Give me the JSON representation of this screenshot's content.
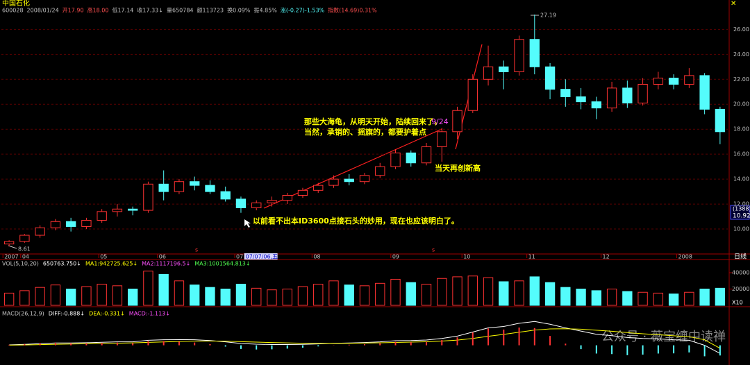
{
  "header": {
    "name": "中国石化",
    "fields": [
      {
        "text": "600028",
        "color": "#c0c0c0"
      },
      {
        "text": "2008/01/24",
        "color": "#c0c0c0"
      },
      {
        "text": "开17.90",
        "color": "#ff5050"
      },
      {
        "text": "高18.00",
        "color": "#ff5050"
      },
      {
        "text": "低17.14",
        "color": "#c0c0c0"
      },
      {
        "text": "收17.33↓",
        "color": "#c0c0c0"
      },
      {
        "text": "量650784",
        "color": "#c0c0c0"
      },
      {
        "text": "额113723",
        "color": "#c0c0c0"
      },
      {
        "text": "换0.09%",
        "color": "#c0c0c0"
      },
      {
        "text": "振4.85%",
        "color": "#c0c0c0"
      },
      {
        "text": "涨(-0.27)-1.53%",
        "color": "#54fcfc"
      },
      {
        "text": "指数(14.69)0.31%",
        "color": "#ff5050"
      }
    ]
  },
  "side_labels": [
    "(1388)",
    "10.92"
  ],
  "period_label": "日线",
  "watermark": "公众号 · 薇宝缠中读禅",
  "chart_data": [
    {
      "type": "candlestick",
      "title": "中国石化",
      "up_color": "#ff3232",
      "down_color": "#54fcfc",
      "grid": true,
      "ylim": [
        8.0,
        27.8
      ],
      "yticks": [
        {
          "value": 10,
          "label": "10.00"
        },
        {
          "value": 12,
          "label": "12.00"
        },
        {
          "value": 14,
          "label": "14.00"
        },
        {
          "value": 16,
          "label": "16.00"
        },
        {
          "value": 18,
          "label": "18.00"
        },
        {
          "value": 20,
          "label": "20.00"
        },
        {
          "value": 22,
          "label": "22.00"
        },
        {
          "value": 24,
          "label": "24.00"
        },
        {
          "value": 26,
          "label": "26.00"
        }
      ],
      "xlim": [
        -0.5,
        46.5
      ],
      "xticks": [
        {
          "value": -0.4,
          "label": "2007"
        },
        {
          "value": 0.75,
          "label": "04"
        },
        {
          "value": 5.8,
          "label": "05"
        },
        {
          "value": 9.6,
          "label": "06"
        },
        {
          "value": 14.6,
          "label": "07"
        },
        {
          "value": 19.6,
          "label": "08"
        },
        {
          "value": 24.7,
          "label": "09"
        },
        {
          "value": 29.3,
          "label": "10"
        },
        {
          "value": 33.5,
          "label": "11"
        },
        {
          "value": 38.3,
          "label": "12"
        },
        {
          "value": 43.2,
          "label": "2008"
        }
      ],
      "cursor_label": "07/07/06,五",
      "open": [
        8.8,
        9.0,
        9.5,
        10.1,
        10.6,
        10.2,
        10.7,
        11.4,
        11.6,
        11.5,
        13.6,
        13.0,
        13.8,
        13.5,
        13.0,
        12.4,
        11.7,
        12.1,
        12.3,
        12.7,
        13.1,
        13.5,
        14.0,
        13.8,
        14.3,
        15.0,
        16.1,
        15.3,
        16.6,
        17.8,
        19.5,
        22.0,
        23.0,
        22.6,
        25.2,
        23.0,
        21.2,
        20.6,
        20.2,
        19.7,
        21.3,
        20.1,
        21.6,
        22.1,
        21.6,
        22.3,
        19.6
      ],
      "high": [
        9.1,
        9.6,
        10.3,
        10.8,
        10.9,
        10.9,
        11.6,
        12.0,
        11.8,
        13.8,
        14.7,
        14.0,
        14.2,
        13.9,
        13.4,
        12.6,
        12.3,
        12.6,
        12.9,
        13.3,
        13.7,
        14.3,
        14.4,
        14.5,
        15.3,
        16.4,
        16.3,
        16.9,
        18.1,
        19.8,
        22.4,
        24.7,
        23.5,
        25.5,
        27.19,
        23.3,
        22.0,
        21.3,
        20.6,
        21.8,
        21.9,
        22.1,
        22.6,
        22.4,
        22.9,
        22.5,
        19.8
      ],
      "low": [
        8.61,
        8.9,
        9.3,
        9.9,
        9.8,
        10.0,
        10.5,
        11.0,
        11.1,
        11.3,
        12.3,
        12.8,
        13.1,
        12.8,
        12.2,
        11.3,
        11.5,
        11.8,
        12.0,
        12.5,
        12.9,
        13.3,
        13.5,
        13.6,
        14.1,
        14.8,
        15.0,
        15.1,
        15.4,
        17.2,
        19.3,
        21.5,
        21.2,
        22.3,
        22.4,
        20.4,
        19.8,
        19.6,
        18.8,
        19.4,
        19.7,
        19.9,
        21.2,
        21.2,
        21.3,
        19.2,
        16.8
      ],
      "close": [
        9.0,
        9.5,
        10.1,
        10.6,
        10.2,
        10.7,
        11.4,
        11.6,
        11.5,
        13.6,
        13.0,
        13.8,
        13.5,
        13.0,
        12.4,
        11.7,
        12.1,
        12.3,
        12.7,
        13.1,
        13.5,
        14.0,
        13.8,
        14.3,
        15.0,
        16.1,
        15.3,
        16.6,
        17.8,
        19.5,
        22.0,
        23.0,
        22.6,
        25.2,
        23.0,
        21.2,
        20.6,
        20.2,
        19.7,
        21.3,
        20.1,
        21.6,
        22.1,
        21.6,
        22.3,
        19.6,
        17.8
      ],
      "annotations": [
        "那些大海龟，从明天开始，陆续回来了，",
        "9/24",
        "当然，承销的、摇旗的，都要护着点",
        "当天再创新高",
        "以前看不出本ID3600点接石头的妙用，现在也应该明白了。",
        "27.19",
        "8.61",
        "s",
        "s"
      ]
    },
    {
      "type": "bar",
      "title": "VOL(5,10,20)",
      "header": [
        {
          "text": "650763.750↓",
          "color": "#ffffff"
        },
        {
          "text": "MA1:942725.625↓",
          "color": "#ffff00"
        },
        {
          "text": "MA2:1117196.5↓",
          "color": "#ff50ff"
        },
        {
          "text": "MA3:1001564.813↓",
          "color": "#50ff50"
        }
      ],
      "ylim": [
        0,
        460000
      ],
      "yticks": [
        200000,
        400000
      ],
      "unit_label": "X10",
      "values": [
        150000,
        180000,
        220000,
        250000,
        200000,
        230000,
        260000,
        240000,
        200000,
        420000,
        380000,
        300000,
        250000,
        220000,
        200000,
        260000,
        210000,
        190000,
        200000,
        230000,
        260000,
        300000,
        250000,
        240000,
        270000,
        320000,
        280000,
        260000,
        330000,
        350000,
        360000,
        340000,
        290000,
        300000,
        350000,
        280000,
        220000,
        200000,
        180000,
        200000,
        170000,
        160000,
        150000,
        140000,
        160000,
        200000,
        210000
      ]
    },
    {
      "type": "line",
      "title": "MACD(26,12,9)",
      "ylim": [
        -2.0,
        3.0
      ],
      "series": [
        {
          "name": "DIFF:-0.888↓",
          "color": "#ffffff",
          "values": [
            0.05,
            0.1,
            0.18,
            0.25,
            0.25,
            0.28,
            0.33,
            0.38,
            0.38,
            0.55,
            0.6,
            0.62,
            0.6,
            0.52,
            0.38,
            0.2,
            0.12,
            0.08,
            0.08,
            0.1,
            0.15,
            0.22,
            0.25,
            0.3,
            0.38,
            0.5,
            0.52,
            0.58,
            0.75,
            1.0,
            1.45,
            1.9,
            2.05,
            2.4,
            2.6,
            2.3,
            1.9,
            1.55,
            1.2,
            1.05,
            0.85,
            0.75,
            0.7,
            0.6,
            0.55,
            0.0,
            -0.888
          ]
        },
        {
          "name": "DEA:-0.331↓",
          "color": "#ffff00",
          "values": [
            0.02,
            0.04,
            0.07,
            0.11,
            0.14,
            0.17,
            0.2,
            0.23,
            0.26,
            0.32,
            0.37,
            0.42,
            0.45,
            0.46,
            0.45,
            0.4,
            0.35,
            0.3,
            0.26,
            0.23,
            0.21,
            0.21,
            0.22,
            0.24,
            0.27,
            0.31,
            0.35,
            0.39,
            0.46,
            0.57,
            0.75,
            0.98,
            1.19,
            1.43,
            1.66,
            1.79,
            1.81,
            1.76,
            1.65,
            1.53,
            1.39,
            1.26,
            1.15,
            1.04,
            0.94,
            0.6,
            -0.331
          ]
        },
        {
          "name": "MACD:-1.113↓",
          "color": "#ff50ff",
          "type": "bar",
          "values": [
            0.06,
            0.12,
            0.22,
            0.28,
            0.22,
            0.22,
            0.26,
            0.3,
            0.24,
            0.46,
            0.46,
            0.4,
            0.3,
            0.12,
            -0.14,
            -0.4,
            -0.46,
            -0.44,
            -0.36,
            -0.26,
            -0.12,
            0.02,
            0.06,
            0.12,
            0.22,
            0.38,
            0.34,
            0.38,
            0.58,
            0.86,
            1.4,
            1.84,
            1.72,
            1.94,
            1.88,
            1.02,
            0.18,
            -0.42,
            -0.9,
            -0.96,
            -1.08,
            -1.02,
            -0.9,
            -0.88,
            -0.78,
            -1.2,
            -1.113
          ]
        }
      ]
    }
  ]
}
